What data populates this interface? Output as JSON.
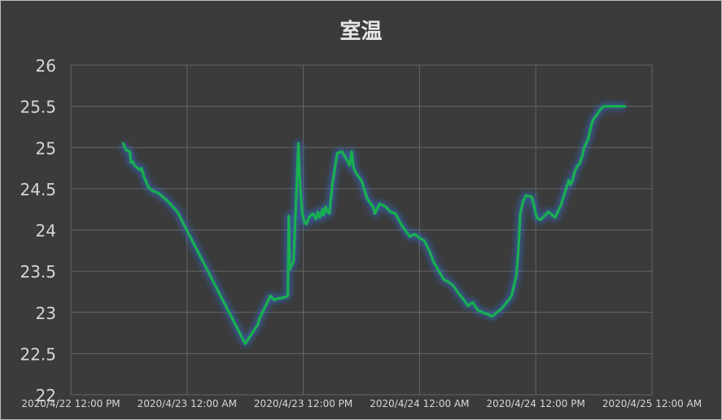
{
  "chart_data": {
    "type": "line",
    "title": "室温",
    "xlabel": "",
    "ylabel": "",
    "ylim": [
      22,
      26
    ],
    "yticks": [
      "22",
      "22.5",
      "23",
      "23.5",
      "24",
      "24.5",
      "25",
      "25.5",
      "26"
    ],
    "xticks": [
      "2020/4/22 12:00 PM",
      "2020/4/23 12:00 AM",
      "2020/4/23 12:00 PM",
      "2020/4/24 12:00 AM",
      "2020/4/24 12:00 PM",
      "2020/4/25 12:00 AM"
    ],
    "xlim_hours": [
      0,
      60
    ],
    "grid": true,
    "legend": "none",
    "colors": {
      "background": "#3b3b3b",
      "grid": "#666666",
      "line": "#19b04f",
      "glow": "#2f6fd6",
      "text": "#d6d6d6"
    },
    "series": [
      {
        "color": "#19b04f",
        "x_hours": [
          5.4,
          5.6,
          5.7,
          6.1,
          6.2,
          6.4,
          6.6,
          6.9,
          7.1,
          7.3,
          7.5,
          8.0,
          8.5,
          9.0,
          10.0,
          11.0,
          18.0,
          19.3,
          19.5,
          20.6,
          21.0,
          21.4,
          21.6,
          22.0,
          22.4,
          22.5,
          22.6,
          23.0,
          23.5,
          23.7,
          23.9,
          24.1,
          24.3,
          24.6,
          24.8,
          25.0,
          25.3,
          25.5,
          25.7,
          26.0,
          26.1,
          26.3,
          26.5,
          26.7,
          27.0,
          27.5,
          28.0,
          28.5,
          28.8,
          29.0,
          29.2,
          29.5,
          30.0,
          30.6,
          31.2,
          31.4,
          31.6,
          31.9,
          32.5,
          33.0,
          33.5,
          34.2,
          35.0,
          35.5,
          36.0,
          36.5,
          37.0,
          37.5,
          38.0,
          38.5,
          39.0,
          39.5,
          40.1,
          40.4,
          40.7,
          41.0,
          41.5,
          42.0,
          42.5,
          43.0,
          43.5,
          44.5,
          45.2,
          45.5,
          46.0,
          46.2,
          46.4,
          46.7,
          47.0,
          47.6,
          48.1,
          48.5,
          49.3,
          50.0,
          50.6,
          51.0,
          51.4,
          51.6,
          51.8,
          52.0,
          52.3,
          52.5,
          52.8,
          53.0,
          53.4,
          53.6,
          53.8,
          54.0,
          54.2,
          54.6,
          55.0,
          55.3,
          55.5,
          56.0,
          56.5,
          56.8,
          57.0,
          57.1,
          57.2
        ],
        "y": [
          25.05,
          25.0,
          24.97,
          24.95,
          24.82,
          24.83,
          24.78,
          24.75,
          24.73,
          24.75,
          24.66,
          24.52,
          24.47,
          24.45,
          24.35,
          24.22,
          22.62,
          22.85,
          22.93,
          23.2,
          23.15,
          23.17,
          23.17,
          23.18,
          23.2,
          24.17,
          23.52,
          23.62,
          25.05,
          24.48,
          24.2,
          24.1,
          24.07,
          24.15,
          24.18,
          24.2,
          24.13,
          24.22,
          24.15,
          24.25,
          24.18,
          24.28,
          24.22,
          24.2,
          24.55,
          24.93,
          24.95,
          24.85,
          24.78,
          24.95,
          24.75,
          24.68,
          24.6,
          24.38,
          24.28,
          24.2,
          24.25,
          24.32,
          24.28,
          24.22,
          24.2,
          24.05,
          23.92,
          23.95,
          23.9,
          23.87,
          23.75,
          23.6,
          23.5,
          23.4,
          23.37,
          23.32,
          23.22,
          23.18,
          23.13,
          23.08,
          23.12,
          23.03,
          23.0,
          22.98,
          22.95,
          23.05,
          23.15,
          23.2,
          23.45,
          23.75,
          24.2,
          24.35,
          24.42,
          24.4,
          24.15,
          24.12,
          24.22,
          24.15,
          24.3,
          24.45,
          24.6,
          24.55,
          24.6,
          24.7,
          24.78,
          24.8,
          24.9,
          25.0,
          25.1,
          25.2,
          25.3,
          25.35,
          25.38,
          25.45,
          25.5,
          25.5,
          25.5,
          25.5,
          25.5,
          25.5,
          25.5,
          25.5,
          25.5
        ]
      }
    ]
  }
}
